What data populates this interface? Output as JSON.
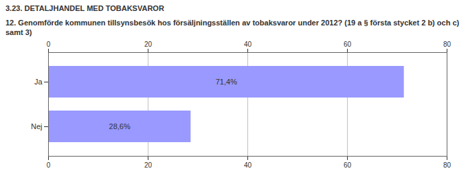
{
  "chart_data": {
    "type": "bar",
    "orientation": "horizontal",
    "title": "3.23. DETALJHANDEL MED TOBAKSVAROR",
    "subtitle": "12. Genomförde kommunen tillsynsbesök hos försäljningsställen av tobaksvaror under 2012? (19 a § första stycket 2 b) och c) samt 3)",
    "categories": [
      "Ja",
      "Nej"
    ],
    "values": [
      71.4,
      28.6
    ],
    "value_labels": [
      "71,4%",
      "28,6%"
    ],
    "data_labels": true,
    "color": "#9999ff",
    "xlim": [
      0,
      80
    ],
    "xticks": [
      0,
      20,
      40,
      60,
      80
    ],
    "grid": true
  }
}
